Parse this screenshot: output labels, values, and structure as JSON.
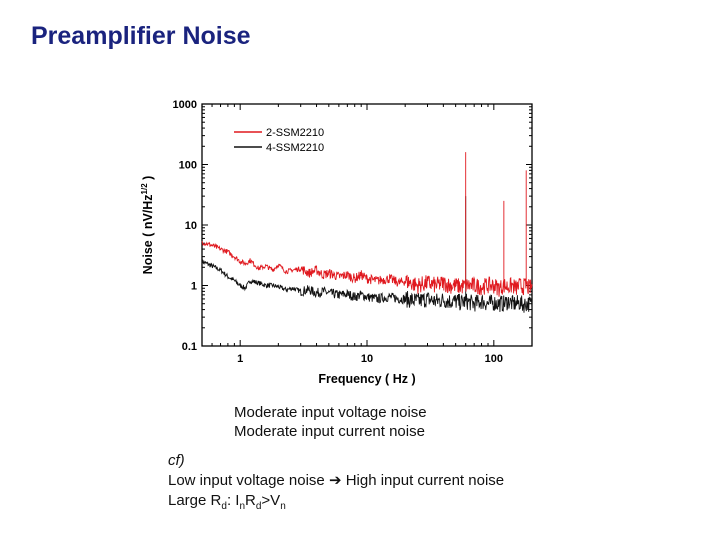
{
  "page": {
    "title": "Preamplifier Noise",
    "notes": [
      "Moderate input voltage noise",
      "Moderate input current noise"
    ],
    "cf": {
      "label": "cf)",
      "line1_left": "Low input voltage noise",
      "line1_arrow": "➔",
      "line1_right": "High input current noise",
      "line2_prefix": "Large R",
      "line2_sub1": "d",
      "line2_mid1": ": I",
      "line2_sub2": "n",
      "line2_mid2": "R",
      "line2_sub3": "d",
      "line2_mid3": ">V",
      "line2_sub4": "n"
    }
  },
  "chart_data": {
    "type": "line",
    "xlabel": "Frequency ( Hz )",
    "ylabel_main": "Noise ( nV/Hz",
    "ylabel_sup": "1/2",
    "ylabel_end": " )",
    "x_scale": "log",
    "y_scale": "log",
    "xlim": [
      0.5,
      200
    ],
    "ylim": [
      0.1,
      1000
    ],
    "x_ticks": [
      {
        "value": 1,
        "label": "1"
      },
      {
        "value": 10,
        "label": "10"
      },
      {
        "value": 100,
        "label": "100"
      }
    ],
    "y_ticks": [
      {
        "value": 0.1,
        "label": "0.1"
      },
      {
        "value": 1,
        "label": "1"
      },
      {
        "value": 10,
        "label": "10"
      },
      {
        "value": 100,
        "label": "100"
      },
      {
        "value": 1000,
        "label": "1000"
      }
    ],
    "legend_position": "top-left",
    "series": [
      {
        "name": "2-SSM2210",
        "color": "#e0191f",
        "points": [
          [
            0.5,
            5.2
          ],
          [
            0.6,
            4.6
          ],
          [
            0.7,
            4.0
          ],
          [
            0.8,
            3.6
          ],
          [
            0.9,
            3.0
          ],
          [
            1.0,
            2.5
          ],
          [
            1.1,
            2.3
          ],
          [
            1.2,
            2.6
          ],
          [
            1.4,
            1.9
          ],
          [
            1.6,
            2.1
          ],
          [
            1.8,
            1.8
          ],
          [
            2.0,
            2.2
          ],
          [
            2.3,
            1.7
          ],
          [
            2.6,
            1.8
          ],
          [
            3.0,
            1.9
          ],
          [
            3.5,
            1.6
          ],
          [
            4.0,
            1.8
          ],
          [
            4.5,
            1.5
          ],
          [
            5,
            1.6
          ],
          [
            6,
            1.4
          ],
          [
            7,
            1.5
          ],
          [
            8,
            1.3
          ],
          [
            9,
            1.5
          ],
          [
            10,
            1.3
          ],
          [
            12,
            1.2
          ],
          [
            15,
            1.3
          ],
          [
            18,
            1.1
          ],
          [
            20,
            1.2
          ],
          [
            25,
            1.0
          ],
          [
            30,
            1.1
          ],
          [
            35,
            1.0
          ],
          [
            40,
            1.1
          ],
          [
            45,
            1.0
          ],
          [
            50,
            1.0
          ],
          [
            55,
            0.95
          ],
          [
            60,
            1.0
          ],
          [
            70,
            1.0
          ],
          [
            80,
            0.95
          ],
          [
            90,
            1.0
          ],
          [
            100,
            1.0
          ],
          [
            110,
            0.9
          ],
          [
            120,
            1.0
          ],
          [
            130,
            0.95
          ],
          [
            140,
            1.0
          ],
          [
            150,
            0.9
          ],
          [
            160,
            1.0
          ],
          [
            170,
            0.95
          ],
          [
            180,
            1.0
          ],
          [
            190,
            0.9
          ],
          [
            200,
            0.95
          ]
        ],
        "spikes": [
          [
            60,
            160
          ],
          [
            120,
            25
          ],
          [
            180,
            80
          ]
        ]
      },
      {
        "name": "4-SSM2210",
        "color": "#111111",
        "points": [
          [
            0.5,
            2.5
          ],
          [
            0.6,
            2.1
          ],
          [
            0.7,
            1.8
          ],
          [
            0.8,
            1.4
          ],
          [
            0.9,
            1.2
          ],
          [
            1.0,
            1.0
          ],
          [
            1.1,
            0.9
          ],
          [
            1.2,
            1.2
          ],
          [
            1.4,
            1.1
          ],
          [
            1.6,
            1.0
          ],
          [
            1.8,
            1.0
          ],
          [
            2.0,
            0.95
          ],
          [
            2.3,
            0.85
          ],
          [
            2.6,
            0.9
          ],
          [
            3.0,
            0.8
          ],
          [
            3.5,
            0.85
          ],
          [
            4.0,
            0.75
          ],
          [
            4.5,
            0.8
          ],
          [
            5,
            0.75
          ],
          [
            6,
            0.7
          ],
          [
            7,
            0.72
          ],
          [
            8,
            0.65
          ],
          [
            9,
            0.7
          ],
          [
            10,
            0.65
          ],
          [
            12,
            0.6
          ],
          [
            15,
            0.65
          ],
          [
            18,
            0.6
          ],
          [
            20,
            0.6
          ],
          [
            25,
            0.55
          ],
          [
            30,
            0.6
          ],
          [
            35,
            0.55
          ],
          [
            40,
            0.58
          ],
          [
            45,
            0.55
          ],
          [
            50,
            0.55
          ],
          [
            55,
            0.52
          ],
          [
            60,
            0.55
          ],
          [
            70,
            0.5
          ],
          [
            80,
            0.55
          ],
          [
            90,
            0.5
          ],
          [
            100,
            0.52
          ],
          [
            110,
            0.5
          ],
          [
            120,
            0.5
          ],
          [
            130,
            0.55
          ],
          [
            140,
            0.5
          ],
          [
            150,
            0.5
          ],
          [
            160,
            0.52
          ],
          [
            170,
            0.48
          ],
          [
            180,
            0.5
          ],
          [
            190,
            0.5
          ],
          [
            200,
            0.48
          ]
        ],
        "spikes": [
          [
            60,
            30
          ]
        ]
      }
    ]
  }
}
